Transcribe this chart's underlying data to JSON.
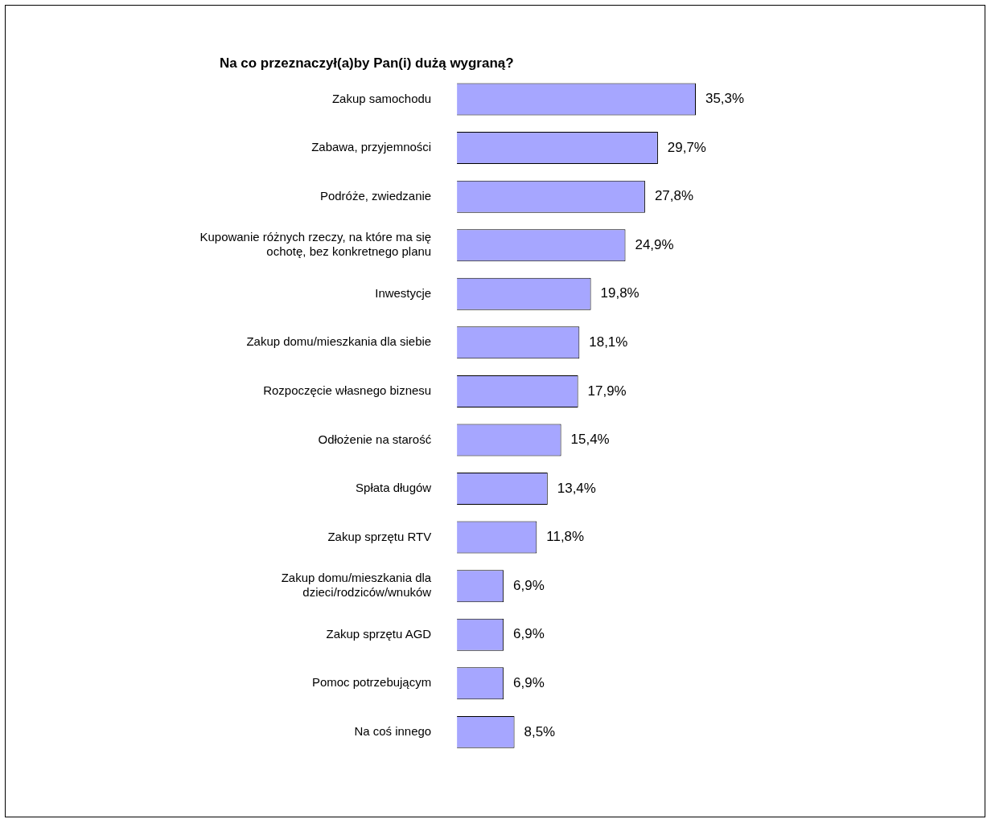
{
  "chart_data": {
    "type": "bar",
    "orientation": "horizontal",
    "title": "Na co przeznaczył(a)by Pan(i) dużą wygraną?",
    "categories": [
      "Zakup samochodu",
      "Zabawa, przyjemności",
      "Podróże, zwiedzanie",
      "Kupowanie różnych rzeczy, na które ma się ochotę, bez konkretnego planu",
      "Inwestycje",
      "Zakup domu/mieszkania dla siebie",
      "Rozpoczęcie własnego biznesu",
      "Odłożenie na starość",
      "Spłata długów",
      "Zakup sprzętu RTV",
      "Zakup domu/mieszkania dla dzieci/rodziców/wnuków",
      "Zakup sprzętu AGD",
      "Pomoc potrzebującym",
      "Na coś innego"
    ],
    "values": [
      35.3,
      29.7,
      27.8,
      24.9,
      19.8,
      18.1,
      17.9,
      15.4,
      13.4,
      11.8,
      6.9,
      6.9,
      6.9,
      8.5
    ],
    "value_labels": [
      "35,3%",
      "29,7%",
      "27,8%",
      "24,9%",
      "19,8%",
      "18,1%",
      "17,9%",
      "15,4%",
      "13,4%",
      "11,8%",
      "6,9%",
      "6,9%",
      "6,9%",
      "8,5%"
    ],
    "color": "#a6a6ff"
  }
}
